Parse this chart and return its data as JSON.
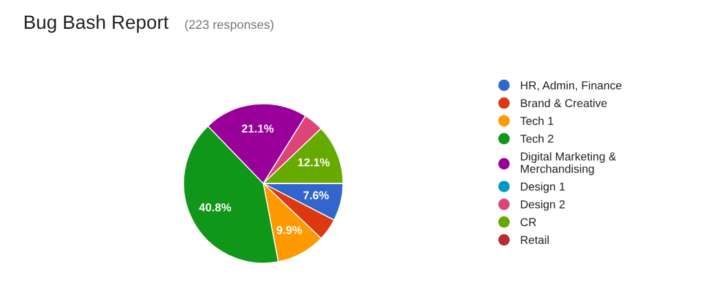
{
  "chart_data": {
    "type": "pie",
    "title": "Bug Bash Report",
    "subtitle": "(223 responses)",
    "categories": [
      "HR, Admin, Finance",
      "Brand & Creative",
      "Tech 1",
      "Tech 2",
      "Digital Marketing &\nMerchandising",
      "Design 1",
      "Design 2",
      "CR",
      "Retail"
    ],
    "values": [
      7.6,
      4.5,
      9.9,
      40.8,
      21.1,
      0,
      4.0,
      12.1,
      0
    ],
    "value_labels": [
      "7.6%",
      null,
      "9.9%",
      "40.8%",
      "21.1%",
      null,
      null,
      "12.1%",
      null
    ],
    "colors": [
      "#3366cc",
      "#dc3912",
      "#ff9900",
      "#109618",
      "#990099",
      "#0099c6",
      "#dd4477",
      "#66aa00",
      "#b82e2e"
    ],
    "legend": "right"
  }
}
